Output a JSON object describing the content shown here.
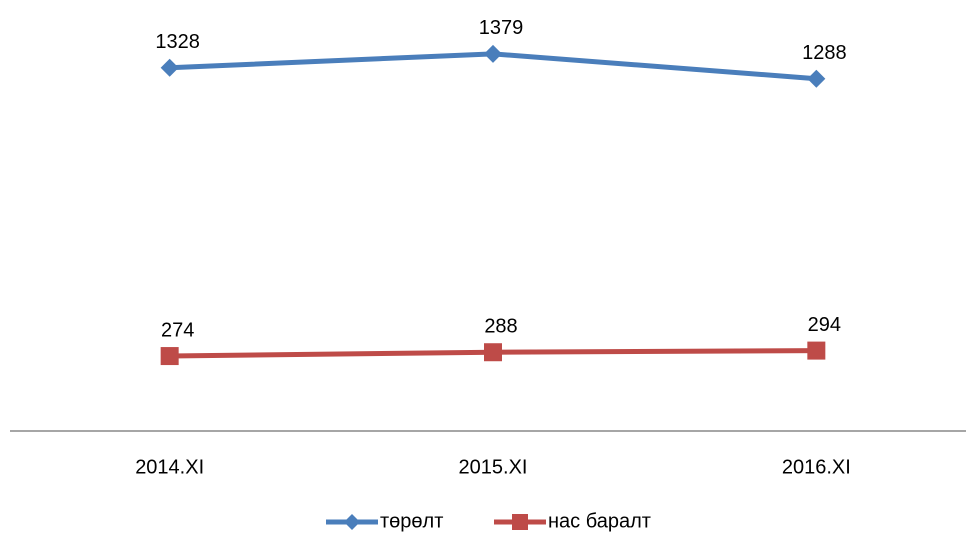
{
  "chart_data": {
    "type": "line",
    "categories": [
      "2014.XI",
      "2015.XI",
      "2016.XI"
    ],
    "series": [
      {
        "name": "төрөлт",
        "color": "#4a7ebb",
        "marker": "diamond",
        "values": [
          1328,
          1379,
          1288
        ]
      },
      {
        "name": "нас баралт",
        "color": "#be4b48",
        "marker": "square",
        "values": [
          274,
          288,
          294
        ]
      }
    ],
    "ylim": [
      0,
      1600
    ],
    "grid": false,
    "legend": "bottom"
  }
}
